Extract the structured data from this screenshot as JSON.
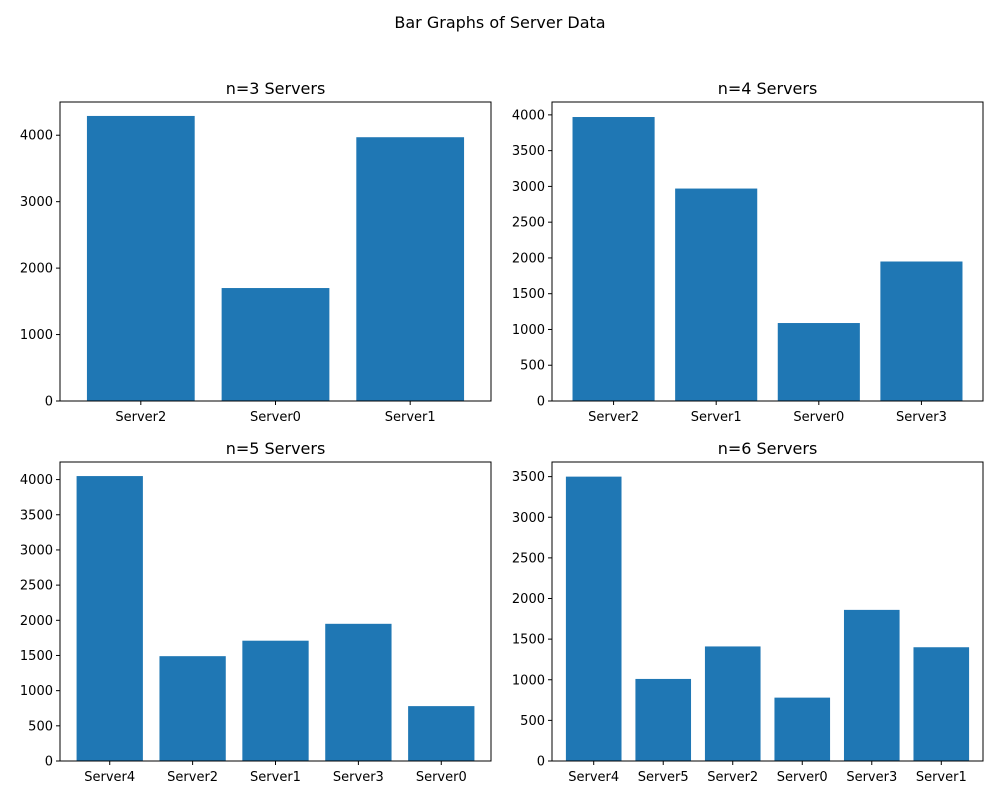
{
  "figure_title": "Bar Graphs of Server Data",
  "colors": {
    "bar": "#1f77b4",
    "axes": "#000000",
    "background": "#ffffff"
  },
  "chart_data": [
    {
      "type": "bar",
      "title": "n=3 Servers",
      "categories": [
        "Server2",
        "Server0",
        "Server1"
      ],
      "values": [
        4290,
        1700,
        3970
      ],
      "ylim": [
        0,
        4500
      ],
      "yticks": [
        0,
        1000,
        2000,
        3000,
        4000
      ],
      "grid": false
    },
    {
      "type": "bar",
      "title": "n=4 Servers",
      "categories": [
        "Server2",
        "Server1",
        "Server0",
        "Server3"
      ],
      "values": [
        3970,
        2970,
        1090,
        1950
      ],
      "ylim": [
        0,
        4180
      ],
      "yticks": [
        0,
        500,
        1000,
        1500,
        2000,
        2500,
        3000,
        3500,
        4000
      ],
      "grid": false
    },
    {
      "type": "bar",
      "title": "n=5 Servers",
      "categories": [
        "Server4",
        "Server2",
        "Server1",
        "Server3",
        "Server0"
      ],
      "values": [
        4050,
        1490,
        1710,
        1950,
        780
      ],
      "ylim": [
        0,
        4250
      ],
      "yticks": [
        0,
        500,
        1000,
        1500,
        2000,
        2500,
        3000,
        3500,
        4000
      ],
      "grid": false
    },
    {
      "type": "bar",
      "title": "n=6 Servers",
      "categories": [
        "Server4",
        "Server5",
        "Server2",
        "Server0",
        "Server3",
        "Server1"
      ],
      "values": [
        3500,
        1010,
        1410,
        780,
        1860,
        1400
      ],
      "ylim": [
        0,
        3680
      ],
      "yticks": [
        0,
        500,
        1000,
        1500,
        2000,
        2500,
        3000,
        3500
      ],
      "grid": false
    }
  ]
}
